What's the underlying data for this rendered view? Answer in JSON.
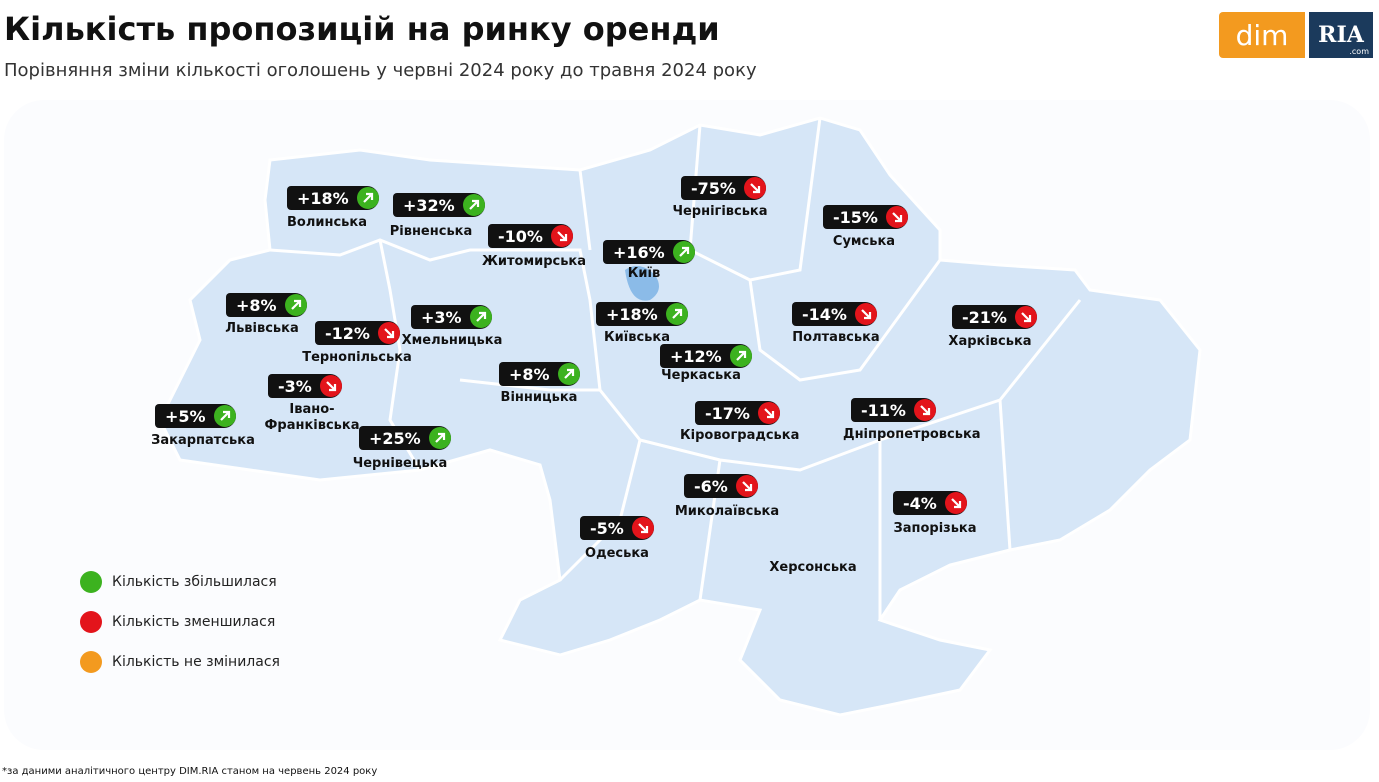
{
  "header": {
    "title": "Кількість пропозицій на ринку оренди",
    "subtitle": "Порівняння зміни кількості оголошень у червні 2024 року до травня 2024 року"
  },
  "logo": {
    "left": "dim",
    "right": "RIA",
    "right_small": ".com"
  },
  "regions": [
    {
      "name": "Волинська",
      "change": "+18%"
    },
    {
      "name": "Рівненська",
      "change": "+32%"
    },
    {
      "name": "Житомирська",
      "change": "-10%"
    },
    {
      "name": "Київ",
      "change": "+16%"
    },
    {
      "name": "Чернігівська",
      "change": "-75%"
    },
    {
      "name": "Сумська",
      "change": "-15%"
    },
    {
      "name": "Львівська",
      "change": "+8%"
    },
    {
      "name": "Тернопільська",
      "change": "-12%"
    },
    {
      "name": "Хмельницька",
      "change": "+3%"
    },
    {
      "name": "Київська",
      "change": "+18%"
    },
    {
      "name": "Черкаська",
      "change": "+12%"
    },
    {
      "name": "Полтавська",
      "change": "-14%"
    },
    {
      "name": "Харківська",
      "change": "-21%"
    },
    {
      "name": "Івано-Франківська",
      "change": "-3%"
    },
    {
      "name": "Вінницька",
      "change": "+8%"
    },
    {
      "name": "Закарпатська",
      "change": "+5%"
    },
    {
      "name": "Чернівецька",
      "change": "+25%"
    },
    {
      "name": "Кіровоградська",
      "change": "-17%"
    },
    {
      "name": "Дніпропетровська",
      "change": "-11%"
    },
    {
      "name": "Миколаївська",
      "change": "-6%"
    },
    {
      "name": "Одеська",
      "change": "-5%"
    },
    {
      "name": "Запорізька",
      "change": "-4%"
    },
    {
      "name": "Херсонська"
    }
  ],
  "legend": [
    {
      "label": "Кількість збільшилася"
    },
    {
      "label": "Кількість зменшилася"
    },
    {
      "label": "Кількість не змінилася"
    }
  ],
  "footnote": "*за даними аналітичного центру DIM.RIA станом на червень 2024 року"
}
